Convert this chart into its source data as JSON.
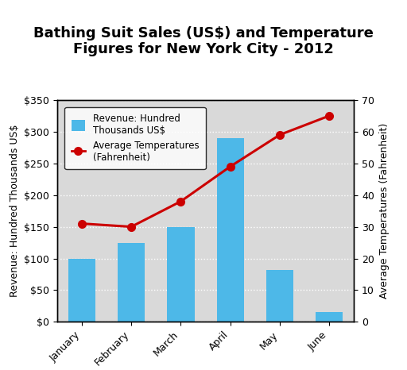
{
  "title_line1": "Bathing Suit Sales (US$) and Temperature",
  "title_line2": "Figures for New York City - 2012",
  "months": [
    "January",
    "February",
    "March",
    "April",
    "May",
    "June"
  ],
  "bar_values": [
    100,
    125,
    150,
    290,
    82,
    15
  ],
  "temp_values": [
    31,
    30,
    38,
    49,
    59,
    65
  ],
  "bar_color": "#4db8e8",
  "line_color": "#cc0000",
  "marker_color": "#cc0000",
  "ylabel_left": "Revenue: Hundred Thousands US$",
  "ylabel_right": "Average Temperatures (Fahrenheit)",
  "ylim_left": [
    0,
    350
  ],
  "ylim_right": [
    0,
    70
  ],
  "yticks_left": [
    0,
    50,
    100,
    150,
    200,
    250,
    300,
    350
  ],
  "yticks_right": [
    0,
    10,
    20,
    30,
    40,
    50,
    60,
    70
  ],
  "legend_bar_label": "Revenue: Hundred\nThousands US$",
  "legend_line_label": "Average Temperatures\n(Fahrenheit)",
  "plot_bg_color": "#d9d9d9",
  "fig_bg_color": "#ffffff",
  "title_fontsize": 13,
  "axis_label_fontsize": 9,
  "tick_label_fontsize": 9,
  "grid_color": "#ffffff",
  "border_color": "#000000"
}
